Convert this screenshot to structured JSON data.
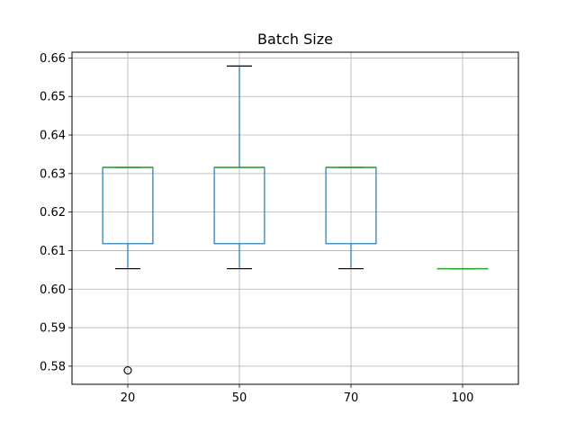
{
  "chart_data": {
    "type": "box",
    "title": "Batch Size",
    "xlabel": "",
    "ylabel": "",
    "categories": [
      "20",
      "50",
      "70",
      "100"
    ],
    "boxes": [
      {
        "category": "20",
        "whisker_low": 0.6053,
        "q1": 0.6118,
        "median": 0.6316,
        "q3": 0.6316,
        "whisker_high": 0.6316,
        "outliers": [
          0.5789
        ]
      },
      {
        "category": "50",
        "whisker_low": 0.6053,
        "q1": 0.6118,
        "median": 0.6316,
        "q3": 0.6316,
        "whisker_high": 0.6579,
        "outliers": []
      },
      {
        "category": "70",
        "whisker_low": 0.6053,
        "q1": 0.6118,
        "median": 0.6316,
        "q3": 0.6316,
        "whisker_high": 0.6316,
        "outliers": []
      },
      {
        "category": "100",
        "whisker_low": 0.6053,
        "q1": 0.6053,
        "median": 0.6053,
        "q3": 0.6053,
        "whisker_high": 0.6053,
        "outliers": []
      }
    ],
    "ylim": [
      0.5753,
      0.6615
    ],
    "yticks": [
      0.58,
      0.59,
      0.6,
      0.61,
      0.62,
      0.63,
      0.64,
      0.65,
      0.66
    ],
    "ytick_labels": [
      "0.58",
      "0.59",
      "0.60",
      "0.61",
      "0.62",
      "0.63",
      "0.64",
      "0.65",
      "0.66"
    ],
    "grid": true,
    "colors": {
      "box": "#1f77b4",
      "median": "#2ca02c",
      "whisker_cap": "#000000",
      "grid": "#b0b0b0",
      "outlier": "#000000"
    }
  }
}
